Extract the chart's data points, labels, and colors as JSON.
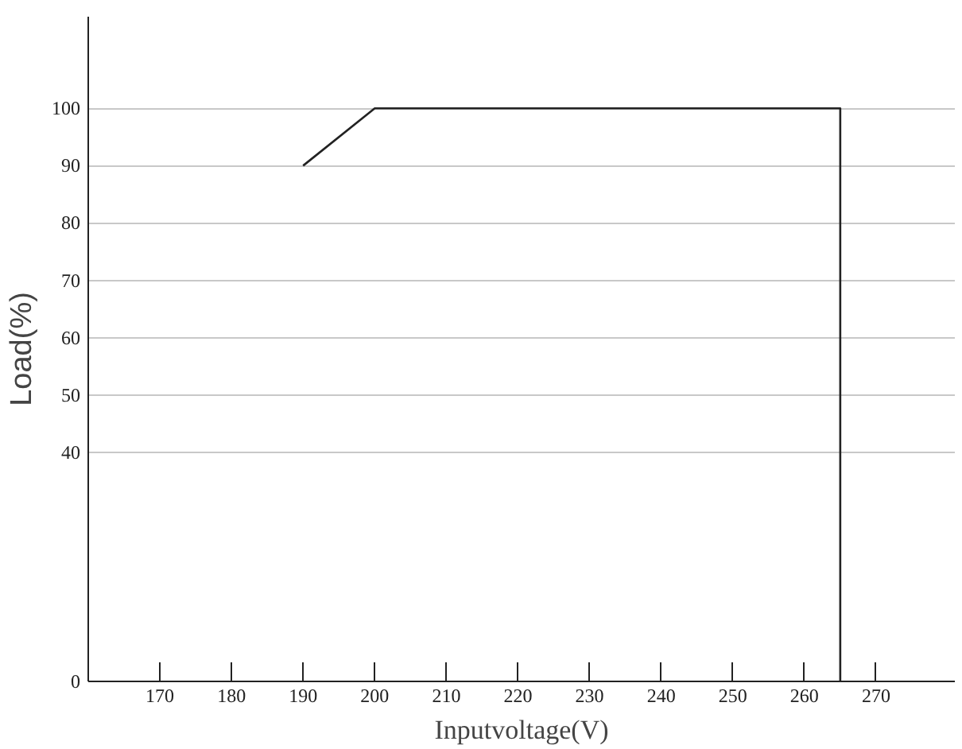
{
  "chart_data": {
    "type": "line",
    "xlabel": "Inputvoltage(V)",
    "ylabel": "Load(%)",
    "x": [
      190,
      200,
      265,
      265
    ],
    "series": [
      {
        "color": "#222222",
        "values": [
          90,
          100,
          100,
          0
        ]
      }
    ],
    "xlim": [
      160,
      281
    ],
    "ylim": [
      0,
      116
    ],
    "xticks": [
      170,
      180,
      190,
      200,
      210,
      220,
      230,
      240,
      250,
      260,
      270
    ],
    "yticks": [
      0,
      40,
      50,
      60,
      70,
      80,
      90,
      100
    ],
    "grid": "y",
    "marker": "none",
    "line_style": "solid"
  }
}
